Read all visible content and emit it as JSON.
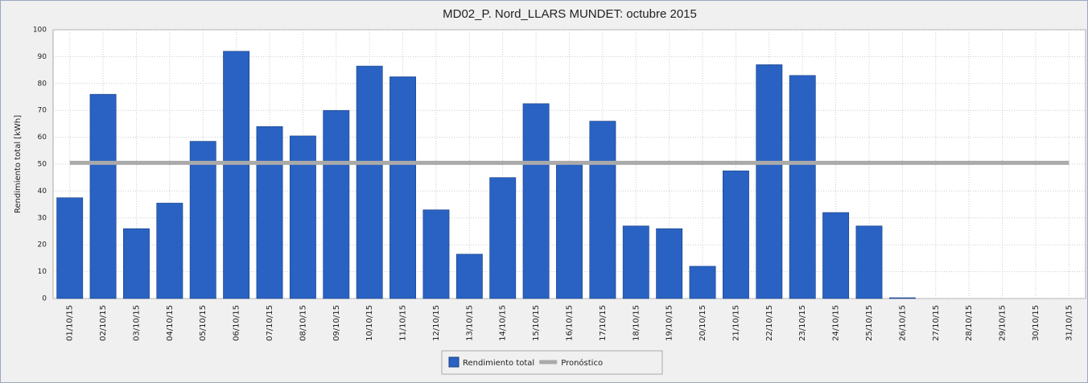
{
  "chart_data": {
    "type": "bar",
    "title": "MD02_P. Nord_LLARS MUNDET: octubre 2015",
    "y_label": "Rendimiento total [kWh]",
    "categories": [
      "01/10/15",
      "02/10/15",
      "03/10/15",
      "04/10/15",
      "05/10/15",
      "06/10/15",
      "07/10/15",
      "08/10/15",
      "09/10/15",
      "10/10/15",
      "11/10/15",
      "12/10/15",
      "13/10/15",
      "14/10/15",
      "15/10/15",
      "16/10/15",
      "17/10/15",
      "18/10/15",
      "19/10/15",
      "20/10/15",
      "21/10/15",
      "22/10/15",
      "23/10/15",
      "24/10/15",
      "25/10/15",
      "26/10/15",
      "27/10/15",
      "28/10/15",
      "29/10/15",
      "30/10/15",
      "31/10/15"
    ],
    "series": [
      {
        "name": "Rendimiento total",
        "color": "#2962c2",
        "type": "bar",
        "values": [
          37.5,
          76,
          26,
          35.5,
          58.5,
          92,
          64,
          60.5,
          70,
          86.5,
          82.5,
          33,
          16.5,
          45,
          72.5,
          50,
          66,
          27,
          26,
          12,
          47.5,
          87,
          83,
          32,
          27,
          0.3,
          0,
          0,
          0,
          0,
          0
        ]
      },
      {
        "name": "Pronóstico",
        "color": "#aaaaaa",
        "type": "line",
        "values": [
          50.5,
          50.5,
          50.5,
          50.5,
          50.5,
          50.5,
          50.5,
          50.5,
          50.5,
          50.5,
          50.5,
          50.5,
          50.5,
          50.5,
          50.5,
          50.5,
          50.5,
          50.5,
          50.5,
          50.5,
          50.5,
          50.5,
          50.5,
          50.5,
          50.5,
          50.5,
          50.5,
          50.5,
          50.5,
          50.5,
          50.5
        ]
      }
    ],
    "ylim": [
      0,
      100
    ],
    "yticks": [
      0,
      10,
      20,
      30,
      40,
      50,
      60,
      70,
      80,
      90,
      100
    ],
    "grid": true
  }
}
